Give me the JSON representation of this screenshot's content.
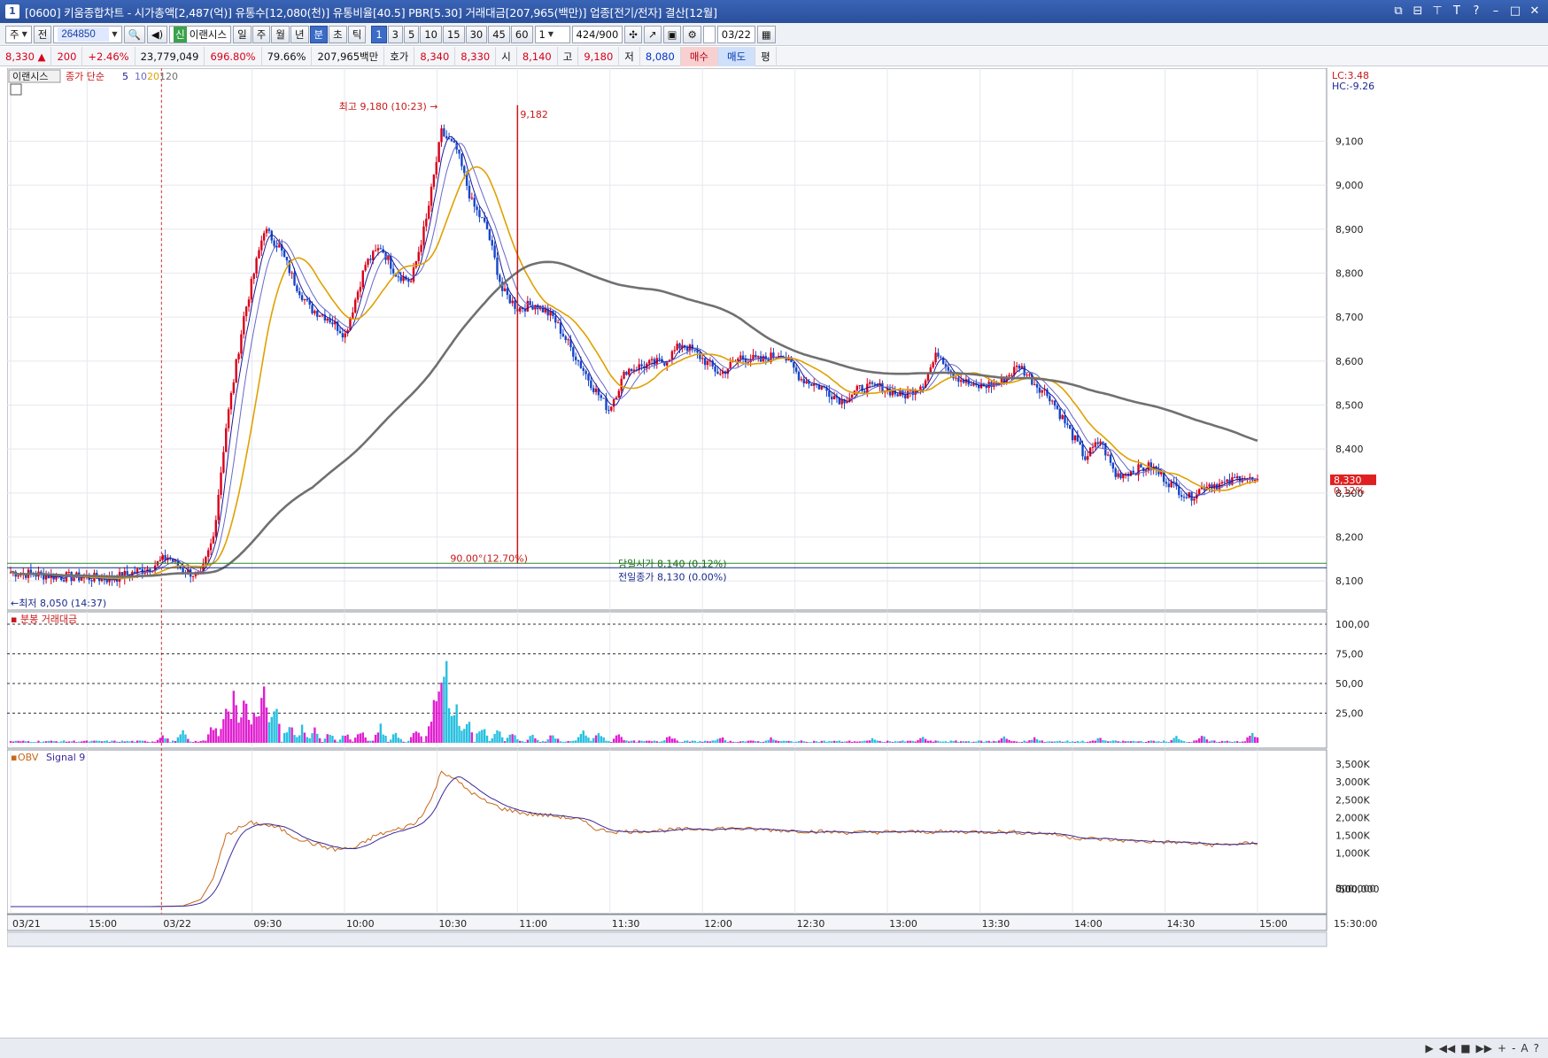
{
  "window": {
    "title": "[0600] 키움종합차트 - 시가총액[2,487(억)] 유통수[12,080(천)] 유통비율[40.5] PBR[5.30] 거래대금[207,965(백만)] 업종[전기/전자] 결산[12월]",
    "app_icon": "1"
  },
  "toolbar": {
    "market_label": "주",
    "scope_label": "전",
    "code": "264850",
    "stock_name": "이랜시스",
    "stock_badge": "신",
    "period_buttons": [
      "일",
      "주",
      "월",
      "년",
      "분",
      "초",
      "틱"
    ],
    "active_period": "분",
    "interval_buttons": [
      "1",
      "3",
      "5",
      "10",
      "15",
      "30",
      "45",
      "60"
    ],
    "active_interval": "1",
    "interval_input": "1",
    "count_value": "424",
    "count_total": "/900",
    "date_value": "03/22"
  },
  "quote": {
    "price": "8,330",
    "change_arrow": "▲",
    "change": "200",
    "change_rate": "+2.46%",
    "volume": "23,779,049",
    "vol_ratio": "696.80%",
    "turnover_ratio": "79.66%",
    "trade_value": "207,965백만",
    "ask_label": "호가",
    "ask1": "8,340",
    "bid1": "8,330",
    "open_label": "시",
    "open": "8,140",
    "high_label": "고",
    "high": "9,180",
    "low_label": "저",
    "low": "8,080",
    "buy_label": "매수",
    "sell_label": "매도",
    "eval_label": "평"
  },
  "colors": {
    "up": "#d8001a",
    "down": "#1546c8",
    "ma5": "#1a1a9a",
    "ma10": "#6868c8",
    "ma20": "#e0a000",
    "ma120": "#707070",
    "obv": "#c86818",
    "obv_signal": "#3a2a9a",
    "vol_up": "#e020d0",
    "vol_down": "#28c0e0"
  },
  "chart_data": [
    {
      "type": "candlestick",
      "panel": "price",
      "legend": {
        "name": "이랜시스",
        "ma_label": "종가 단순",
        "periods": [
          "5",
          "10",
          "20",
          "120"
        ]
      },
      "ylim": [
        8050,
        9250
      ],
      "y_ticks": [
        "9,100",
        "9,000",
        "8,900",
        "8,800",
        "8,700",
        "8,600",
        "8,500",
        "8,400",
        "8,300",
        "8,200",
        "8,100"
      ],
      "x_tick_labels": [
        "03/21",
        "15:00",
        "03/22",
        "09:30",
        "10:00",
        "10:30",
        "11:00",
        "11:30",
        "12:00",
        "12:30",
        "13:00",
        "13:30",
        "14:00",
        "14:30",
        "15:00",
        "15:30:00"
      ],
      "annotations": {
        "high": "최고 9,180 (10:23)",
        "low": "최저 8,050 (14:37)",
        "fib_top": "9,182",
        "fib_bottom": "90.00°(12.70%)",
        "open_line": "당일시가 8,140 (0.12%)",
        "prev_close_line": "전일종가 8,130 (0.00%)",
        "lc": "LC:3.48",
        "hc": "HC:-9.26",
        "price_tag": "8,330",
        "pct_tag": "0.12%"
      },
      "anchors_close": [
        [
          0,
          8120
        ],
        [
          20,
          8110
        ],
        [
          40,
          8105
        ],
        [
          55,
          8130
        ],
        [
          62,
          8155
        ],
        [
          68,
          8125
        ],
        [
          75,
          8110
        ],
        [
          80,
          8200
        ],
        [
          85,
          8450
        ],
        [
          92,
          8700
        ],
        [
          100,
          8900
        ],
        [
          106,
          8860
        ],
        [
          112,
          8780
        ],
        [
          118,
          8720
        ],
        [
          125,
          8700
        ],
        [
          132,
          8660
        ],
        [
          140,
          8820
        ],
        [
          146,
          8860
        ],
        [
          152,
          8800
        ],
        [
          158,
          8780
        ],
        [
          164,
          8920
        ],
        [
          170,
          9120
        ],
        [
          176,
          9080
        ],
        [
          182,
          8960
        ],
        [
          188,
          8900
        ],
        [
          194,
          8760
        ],
        [
          200,
          8720
        ],
        [
          207,
          8730
        ],
        [
          214,
          8700
        ],
        [
          222,
          8620
        ],
        [
          230,
          8540
        ],
        [
          236,
          8490
        ],
        [
          243,
          8580
        ],
        [
          250,
          8590
        ],
        [
          258,
          8600
        ],
        [
          265,
          8640
        ],
        [
          272,
          8610
        ],
        [
          280,
          8570
        ],
        [
          288,
          8610
        ],
        [
          296,
          8600
        ],
        [
          304,
          8620
        ],
        [
          312,
          8560
        ],
        [
          320,
          8540
        ],
        [
          328,
          8510
        ],
        [
          336,
          8540
        ],
        [
          344,
          8540
        ],
        [
          352,
          8520
        ],
        [
          360,
          8550
        ],
        [
          366,
          8620
        ],
        [
          372,
          8570
        ],
        [
          380,
          8540
        ],
        [
          390,
          8550
        ],
        [
          398,
          8590
        ],
        [
          404,
          8550
        ],
        [
          410,
          8520
        ],
        [
          418,
          8440
        ],
        [
          424,
          8380
        ],
        [
          430,
          8420
        ],
        [
          436,
          8340
        ],
        [
          442,
          8350
        ],
        [
          450,
          8360
        ],
        [
          458,
          8320
        ],
        [
          465,
          8290
        ],
        [
          472,
          8320
        ],
        [
          480,
          8320
        ],
        [
          486,
          8340
        ],
        [
          492,
          8320
        ]
      ],
      "bars_count": 493
    },
    {
      "type": "bar",
      "panel": "volume",
      "name": "분봉 거래대금",
      "ylim": [
        0,
        100
      ],
      "y_ticks": [
        "100,00",
        "75,00",
        "50,00",
        "25,00"
      ],
      "spikes": [
        [
          60,
          8
        ],
        [
          68,
          10
        ],
        [
          80,
          18
        ],
        [
          85,
          40
        ],
        [
          88,
          44
        ],
        [
          92,
          48
        ],
        [
          96,
          30
        ],
        [
          100,
          50
        ],
        [
          104,
          40
        ],
        [
          110,
          20
        ],
        [
          115,
          14
        ],
        [
          120,
          12
        ],
        [
          126,
          10
        ],
        [
          132,
          9
        ],
        [
          138,
          12
        ],
        [
          146,
          16
        ],
        [
          152,
          10
        ],
        [
          160,
          14
        ],
        [
          166,
          20
        ],
        [
          168,
          46
        ],
        [
          170,
          74
        ],
        [
          172,
          66
        ],
        [
          176,
          30
        ],
        [
          180,
          26
        ],
        [
          186,
          18
        ],
        [
          192,
          14
        ],
        [
          198,
          10
        ],
        [
          206,
          8
        ],
        [
          214,
          8
        ],
        [
          226,
          12
        ],
        [
          232,
          10
        ],
        [
          240,
          9
        ],
        [
          260,
          8
        ],
        [
          280,
          6
        ],
        [
          300,
          5
        ],
        [
          340,
          4
        ],
        [
          360,
          5
        ],
        [
          392,
          6
        ],
        [
          404,
          5
        ],
        [
          430,
          5
        ],
        [
          460,
          6
        ],
        [
          470,
          7
        ],
        [
          490,
          10
        ]
      ]
    },
    {
      "type": "line",
      "panel": "obv",
      "series": [
        {
          "name": "OBV"
        },
        {
          "name": "Signal 9"
        }
      ],
      "ylim": [
        -600000,
        3700000
      ],
      "y_ticks": [
        "3,500K",
        "3,000K",
        "2,500K",
        "2,000K",
        "1,500K",
        "1,000K",
        "500,000",
        "0,00",
        "-500,000"
      ],
      "anchors": [
        [
          0,
          -500000
        ],
        [
          55,
          -500000
        ],
        [
          68,
          -480000
        ],
        [
          75,
          -300000
        ],
        [
          80,
          300000
        ],
        [
          85,
          1500000
        ],
        [
          90,
          1700000
        ],
        [
          95,
          1850000
        ],
        [
          100,
          1800000
        ],
        [
          106,
          1700000
        ],
        [
          112,
          1450000
        ],
        [
          120,
          1250000
        ],
        [
          128,
          1100000
        ],
        [
          136,
          1150000
        ],
        [
          144,
          1500000
        ],
        [
          152,
          1650000
        ],
        [
          160,
          1850000
        ],
        [
          166,
          2500000
        ],
        [
          170,
          3300000
        ],
        [
          174,
          3150000
        ],
        [
          180,
          2800000
        ],
        [
          186,
          2500000
        ],
        [
          194,
          2250000
        ],
        [
          204,
          2100000
        ],
        [
          214,
          2050000
        ],
        [
          224,
          1950000
        ],
        [
          232,
          1650000
        ],
        [
          240,
          1600000
        ],
        [
          260,
          1650000
        ],
        [
          280,
          1700000
        ],
        [
          300,
          1650000
        ],
        [
          330,
          1580000
        ],
        [
          360,
          1600000
        ],
        [
          390,
          1600000
        ],
        [
          410,
          1550000
        ],
        [
          420,
          1430000
        ],
        [
          440,
          1350000
        ],
        [
          460,
          1300000
        ],
        [
          475,
          1230000
        ],
        [
          492,
          1280000
        ]
      ]
    }
  ],
  "statusbar": {
    "controls": [
      "▶",
      "◀◀",
      "■",
      "▶▶",
      "+",
      "-",
      "A",
      "?"
    ]
  }
}
